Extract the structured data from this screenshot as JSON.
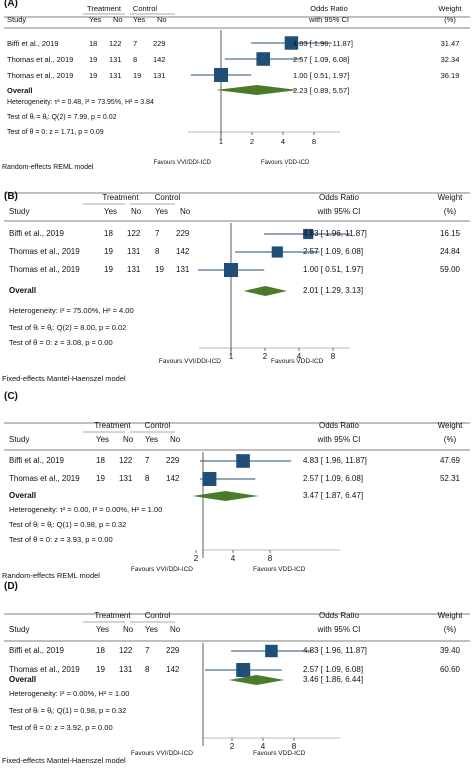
{
  "colors": {
    "marker": "#1f4e79",
    "diamond": "#4a7a2a",
    "rule": "#555555",
    "axis": "#777777"
  },
  "panels": [
    {
      "label": "(A)",
      "headers": {
        "treatment": "Treatment",
        "control": "Control",
        "study": "Study",
        "yes": "Yes",
        "no": "No",
        "or1": "Odds Ratio",
        "or2": "with 95% CI",
        "w1": "Weight",
        "w2": "(%)"
      },
      "rows": [
        {
          "study": "Biffi et al., 2019",
          "t_yes": "18",
          "t_no": "122",
          "c_yes": "7",
          "c_no": "229",
          "ci_text": "4.83 [  1.96,   11.87]",
          "weight": "31.47",
          "or": 4.83,
          "lo": 1.96,
          "hi": 11.87,
          "w": 31.47
        },
        {
          "study": "Thomas et al., 2019",
          "t_yes": "19",
          "t_no": "131",
          "c_yes": "8",
          "c_no": "142",
          "ci_text": "2.57 [  1.09,    6.08]",
          "weight": "32.34",
          "or": 2.57,
          "lo": 1.09,
          "hi": 6.08,
          "w": 32.34
        },
        {
          "study": "Thomas et al., 2019",
          "t_yes": "19",
          "t_no": "131",
          "c_yes": "19",
          "c_no": "131",
          "ci_text": "1.00 [  0.51,    1.97]",
          "weight": "36.19",
          "or": 1.0,
          "lo": 0.51,
          "hi": 1.97,
          "w": 36.19
        }
      ],
      "overall": {
        "label": "Overall",
        "ci_text": "2.23 [  0.89,    5.57]",
        "or": 2.23,
        "lo": 0.89,
        "hi": 5.57
      },
      "stats": [
        "Heterogeneity: τ² = 0.48, I² = 73.95%, H² = 3.84",
        "Test of θᵢ = θⱼ: Q(2) = 7.99, p = 0.02",
        "Test of θ = 0: z = 1.71, p = 0.09"
      ],
      "ticks": [
        "1",
        "2",
        "4",
        "8"
      ],
      "favours_left": "Favours VVI/DDI-ICD",
      "favours_right": "Favours VDD-ICD",
      "model": "Random-effects REML model"
    },
    {
      "label": "(B)",
      "headers": {
        "treatment": "Treatment",
        "control": "Control",
        "study": "Study",
        "yes": "Yes",
        "no": "No",
        "or1": "Odds Ratio",
        "or2": "with 95% CI",
        "w1": "Weight",
        "w2": "(%)"
      },
      "rows": [
        {
          "study": "Biffi et al., 2019",
          "t_yes": "18",
          "t_no": "122",
          "c_yes": "7",
          "c_no": "229",
          "ci_text": "4.83 [  1.96,   11.87]",
          "weight": "16.15",
          "or": 4.83,
          "lo": 1.96,
          "hi": 11.87,
          "w": 16.15
        },
        {
          "study": "Thomas et al., 2019",
          "t_yes": "19",
          "t_no": "131",
          "c_yes": "8",
          "c_no": "142",
          "ci_text": "2.57 [  1.09,    6.08]",
          "weight": "24.84",
          "or": 2.57,
          "lo": 1.09,
          "hi": 6.08,
          "w": 24.84
        },
        {
          "study": "Thomas et al., 2019",
          "t_yes": "19",
          "t_no": "131",
          "c_yes": "19",
          "c_no": "131",
          "ci_text": "1.00 [  0.51,    1.97]",
          "weight": "59.00",
          "or": 1.0,
          "lo": 0.51,
          "hi": 1.97,
          "w": 59.0
        }
      ],
      "overall": {
        "label": "Overall",
        "ci_text": "2.01 [  1.29,    3.13]",
        "or": 2.01,
        "lo": 1.29,
        "hi": 3.13
      },
      "stats": [
        "Heterogeneity: I² = 75.00%, H² = 4.00",
        "Test of θᵢ = θⱼ: Q(2) = 8.00, p = 0.02",
        "Test of θ = 0: z = 3.08, p = 0.00"
      ],
      "ticks": [
        "1",
        "2",
        "4",
        "8"
      ],
      "favours_left": "Favours VVI/DDI-ICD",
      "favours_right": "Favours VDD-ICD",
      "model": "Fixed-effects Mantel-Haenszel model"
    },
    {
      "label": "(C)",
      "headers": {
        "treatment": "Treatment",
        "control": "Control",
        "study": "Study",
        "yes": "Yes",
        "no": "No",
        "or1": "Odds Ratio",
        "or2": "with 95% CI",
        "w1": "Weight",
        "w2": "(%)"
      },
      "rows": [
        {
          "study": "Biffi et al., 2019",
          "t_yes": "18",
          "t_no": "122",
          "c_yes": "7",
          "c_no": "229",
          "ci_text": "4.83 [  1.96,   11.87]",
          "weight": "47.69",
          "or": 4.83,
          "lo": 1.96,
          "hi": 11.87,
          "w": 47.69
        },
        {
          "study": "Thomas et al., 2019",
          "t_yes": "19",
          "t_no": "131",
          "c_yes": "8",
          "c_no": "142",
          "ci_text": "2.57 [  1.09,    6.08]",
          "weight": "52.31",
          "or": 2.57,
          "lo": 1.09,
          "hi": 6.08,
          "w": 52.31
        }
      ],
      "overall": {
        "label": "Overall",
        "ci_text": "3.47 [  1.87,    6.47]",
        "or": 3.47,
        "lo": 1.87,
        "hi": 6.47
      },
      "stats": [
        "Heterogeneity: τ² = 0.00, I² = 0.00%, H² = 1.00",
        "Test of θᵢ = θⱼ: Q(1) = 0.98, p = 0.32",
        "Test of θ = 0: z = 3.93, p = 0.00"
      ],
      "ticks": [
        "2",
        "4",
        "8"
      ],
      "favours_left": "Favours VVI/DDI-ICD",
      "favours_right": "Favours VDD-ICD",
      "model": "Random-effects REML model"
    },
    {
      "label": "(D)",
      "headers": {
        "treatment": "Treatment",
        "control": "Control",
        "study": "Study",
        "yes": "Yes",
        "no": "No",
        "or1": "Odds Ratio",
        "or2": "with 95% CI",
        "w1": "Weight",
        "w2": "(%)"
      },
      "rows": [
        {
          "study": "Biffi et al., 2019",
          "t_yes": "18",
          "t_no": "122",
          "c_yes": "7",
          "c_no": "229",
          "ci_text": "4.83 [  1.96,   11.87]",
          "weight": "39.40",
          "or": 4.83,
          "lo": 1.96,
          "hi": 11.87,
          "w": 39.4
        },
        {
          "study": "Thomas et al., 2019",
          "t_yes": "19",
          "t_no": "131",
          "c_yes": "8",
          "c_no": "142",
          "ci_text": "2.57 [  1.09,    6.08]",
          "weight": "60.60",
          "or": 2.57,
          "lo": 1.09,
          "hi": 6.08,
          "w": 60.6
        }
      ],
      "overall": {
        "label": "Overall",
        "ci_text": "3.46 [  1.86,    6.44]",
        "or": 3.46,
        "lo": 1.86,
        "hi": 6.44
      },
      "stats": [
        "Heterogeneity: I² = 0.00%, H² = 1.00",
        "Test of θᵢ = θⱼ: Q(1) = 0.98, p = 0.32",
        "Test of θ = 0: z = 3.92, p = 0.00"
      ],
      "ticks": [
        "2",
        "4",
        "8"
      ],
      "favours_left": "Favours VVI/DDI-ICD",
      "favours_right": "Favours VDD-ICD",
      "model": "Fixed-effects Mantel-Haenszel model"
    }
  ],
  "chart_data": [
    {
      "type": "forest",
      "scale": "log",
      "series": [
        {
          "categories": [
            "Biffi et al., 2019",
            "Thomas et al., 2019",
            "Thomas et al., 2019"
          ],
          "values": [
            4.83,
            2.57,
            1.0
          ],
          "ci_low": [
            1.96,
            1.09,
            0.51
          ],
          "ci_high": [
            11.87,
            6.08,
            1.97
          ],
          "weights": [
            31.47,
            32.34,
            36.19
          ]
        }
      ],
      "overall": {
        "value": 2.23,
        "ci": [
          0.89,
          5.57
        ]
      }
    },
    {
      "type": "forest",
      "scale": "log",
      "series": [
        {
          "categories": [
            "Biffi et al., 2019",
            "Thomas et al., 2019",
            "Thomas et al., 2019"
          ],
          "values": [
            4.83,
            2.57,
            1.0
          ],
          "ci_low": [
            1.96,
            1.09,
            0.51
          ],
          "ci_high": [
            11.87,
            6.08,
            1.97
          ],
          "weights": [
            16.15,
            24.84,
            59.0
          ]
        }
      ],
      "overall": {
        "value": 2.01,
        "ci": [
          1.29,
          3.13
        ]
      }
    },
    {
      "type": "forest",
      "scale": "log",
      "series": [
        {
          "categories": [
            "Biffi et al., 2019",
            "Thomas et al., 2019"
          ],
          "values": [
            4.83,
            2.57
          ],
          "ci_low": [
            1.96,
            1.09
          ],
          "ci_high": [
            11.87,
            6.08
          ],
          "weights": [
            47.69,
            52.31
          ]
        }
      ],
      "overall": {
        "value": 3.47,
        "ci": [
          1.87,
          6.47
        ]
      }
    },
    {
      "type": "forest",
      "scale": "log",
      "series": [
        {
          "categories": [
            "Biffi et al., 2019",
            "Thomas et al., 2019"
          ],
          "values": [
            4.83,
            2.57
          ],
          "ci_low": [
            1.96,
            1.09
          ],
          "ci_high": [
            11.87,
            6.08
          ],
          "weights": [
            39.4,
            60.6
          ]
        }
      ],
      "overall": {
        "value": 3.46,
        "ci": [
          1.86,
          6.44
        ]
      }
    }
  ]
}
